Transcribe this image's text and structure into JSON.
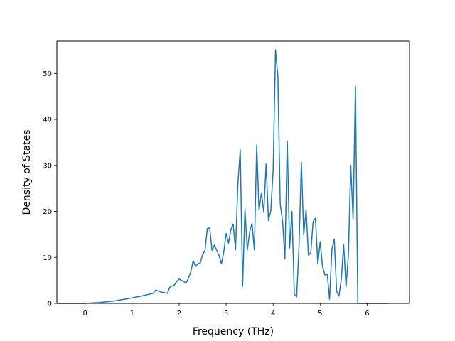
{
  "chart_data": {
    "type": "line",
    "title": "",
    "xlabel": "Frequency (THz)",
    "ylabel": "Density of States",
    "xlim": [
      -0.6,
      6.9
    ],
    "ylim": [
      0,
      57
    ],
    "xticks": [
      0,
      1,
      2,
      3,
      4,
      5,
      6
    ],
    "xtick_labels": [
      "0",
      "1",
      "2",
      "3",
      "4",
      "5",
      "6"
    ],
    "yticks": [
      0,
      10,
      20,
      30,
      40,
      50
    ],
    "ytick_labels": [
      "0",
      "10",
      "20",
      "30",
      "40",
      "50"
    ],
    "grid": false,
    "legend": false,
    "color": "#1f77b4",
    "series": [
      {
        "x": [
          -0.6,
          -0.3,
          0.0,
          0.3,
          0.6,
          0.9,
          1.2,
          1.45,
          1.5,
          1.55,
          1.6,
          1.7,
          1.75,
          1.8,
          1.9,
          1.95,
          2.0,
          2.05,
          2.1,
          2.15,
          2.2,
          2.25,
          2.3,
          2.35,
          2.4,
          2.45,
          2.5,
          2.55,
          2.6,
          2.65,
          2.7,
          2.75,
          2.8,
          2.85,
          2.9,
          2.95,
          3.0,
          3.05,
          3.1,
          3.15,
          3.2,
          3.25,
          3.3,
          3.35,
          3.4,
          3.45,
          3.5,
          3.55,
          3.6,
          3.65,
          3.7,
          3.75,
          3.8,
          3.85,
          3.9,
          3.95,
          4.0,
          4.05,
          4.1,
          4.15,
          4.2,
          4.25,
          4.3,
          4.35,
          4.4,
          4.45,
          4.5,
          4.55,
          4.6,
          4.65,
          4.7,
          4.75,
          4.8,
          4.85,
          4.9,
          4.95,
          5.0,
          5.05,
          5.1,
          5.15,
          5.2,
          5.25,
          5.3,
          5.35,
          5.4,
          5.45,
          5.5,
          5.55,
          5.6,
          5.65,
          5.7,
          5.75,
          5.8,
          5.85,
          5.9,
          5.95,
          6.0,
          6.2,
          6.45
        ],
        "y": [
          0,
          0,
          0,
          0.2,
          0.5,
          1.0,
          1.6,
          2.2,
          2.9,
          2.7,
          2.5,
          2.3,
          2.2,
          3.5,
          4.0,
          4.8,
          5.3,
          5.0,
          4.7,
          4.4,
          5.5,
          7.0,
          9.3,
          8.0,
          8.6,
          8.8,
          10.6,
          11.5,
          16.3,
          16.4,
          11.5,
          12.7,
          11.5,
          10.4,
          8.6,
          11.2,
          15.2,
          13.1,
          16.0,
          17.2,
          11.6,
          26.0,
          33.4,
          3.7,
          20.5,
          11.6,
          15.5,
          17.4,
          11.6,
          34.4,
          20.2,
          24.0,
          19.8,
          30.3,
          18.0,
          20.1,
          29.0,
          55.1,
          49.5,
          21.6,
          17.9,
          9.7,
          35.3,
          12.0,
          20.0,
          2.0,
          1.4,
          12.5,
          30.7,
          14.9,
          20.4,
          10.5,
          11.0,
          17.8,
          18.5,
          8.5,
          13.4,
          8.0,
          6.2,
          6.4,
          0.9,
          11.8,
          14.0,
          2.6,
          1.6,
          5.3,
          12.8,
          3.6,
          10.4,
          30.0,
          18.3,
          47.2,
          0,
          0,
          0,
          0,
          0,
          0,
          0
        ]
      }
    ]
  }
}
